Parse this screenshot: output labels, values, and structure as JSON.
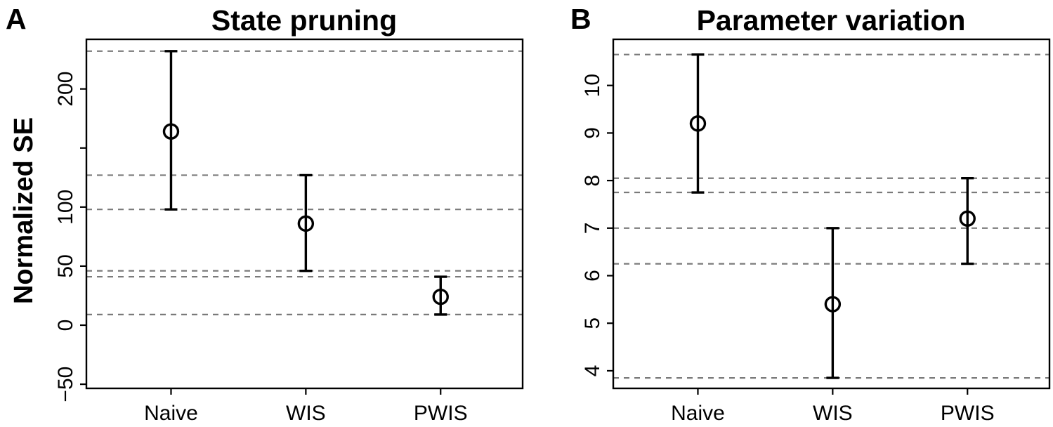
{
  "figure_type": "two-panel point-estimate plot with 95% CI error bars",
  "colors": {
    "foreground": "#000000",
    "gridline": "#7a7a7a",
    "background": "#ffffff"
  },
  "marker": "open-circle",
  "chart_data": [
    {
      "type": "scatter",
      "panel_label": "A",
      "title": "State pruning",
      "xlabel": "",
      "ylabel": "Normalized SE",
      "categories": [
        "Naive",
        "WIS",
        "PWIS"
      ],
      "points": [
        {
          "category": "Naive",
          "mean": 164,
          "ci_low": 98,
          "ci_high": 232
        },
        {
          "category": "WIS",
          "mean": 86,
          "ci_low": 46,
          "ci_high": 127
        },
        {
          "category": "PWIS",
          "mean": 24,
          "ci_low": 9,
          "ci_high": 41
        }
      ],
      "gridlines": [
        232,
        127,
        98,
        46,
        41,
        9
      ],
      "gridline_style": "dashed horizontal at each CI bound",
      "ylim": [
        -53.5,
        242
      ],
      "y_ticks": [
        {
          "value": 200,
          "label": "200"
        },
        {
          "value": 150,
          "label": ""
        },
        {
          "value": 100,
          "label": "100"
        },
        {
          "value": 50,
          "label": "50"
        },
        {
          "value": 0,
          "label": "0"
        },
        {
          "value": -50,
          "label": "−50"
        }
      ],
      "legend": "none"
    },
    {
      "type": "scatter",
      "panel_label": "B",
      "title": "Parameter variation",
      "xlabel": "",
      "ylabel": "",
      "categories": [
        "Naive",
        "WIS",
        "PWIS"
      ],
      "points": [
        {
          "category": "Naive",
          "mean": 9.2,
          "ci_low": 7.75,
          "ci_high": 10.65
        },
        {
          "category": "WIS",
          "mean": 5.4,
          "ci_low": 3.85,
          "ci_high": 7.0
        },
        {
          "category": "PWIS",
          "mean": 7.2,
          "ci_low": 6.25,
          "ci_high": 8.05
        }
      ],
      "gridlines": [
        10.65,
        8.05,
        7.75,
        7.0,
        6.25,
        3.85
      ],
      "gridline_style": "dashed horizontal at each CI bound",
      "ylim": [
        3.63,
        10.97
      ],
      "y_ticks": [
        {
          "value": 10,
          "label": "10"
        },
        {
          "value": 9,
          "label": "9"
        },
        {
          "value": 8,
          "label": "8"
        },
        {
          "value": 7,
          "label": "7"
        },
        {
          "value": 6,
          "label": "6"
        },
        {
          "value": 5,
          "label": "5"
        },
        {
          "value": 4,
          "label": "4"
        }
      ],
      "legend": "none"
    }
  ]
}
